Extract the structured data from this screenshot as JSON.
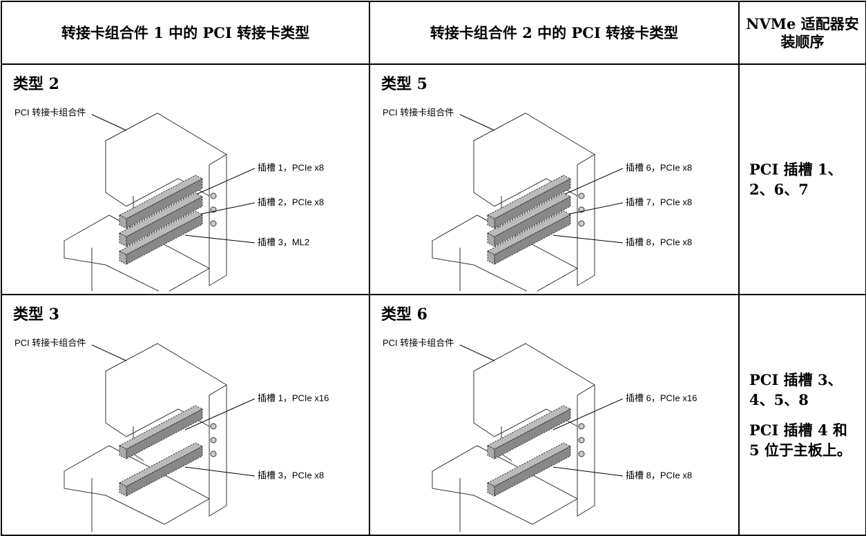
{
  "table": {
    "header": [
      "转接卡组合件 1 中的 PCI 转接卡类型",
      "转接卡组合件 2 中的 PCI 转接卡类型",
      "NVMe 适配器安装顺序"
    ],
    "rows": [
      {
        "cells": [
          {
            "title": "类型 2",
            "assembly_label": "PCI 转接卡组合件",
            "slots": [
              "插槽 1，PCIe x8",
              "插槽 2，PCIe x8",
              "插槽 3，ML2"
            ]
          },
          {
            "title": "类型 5",
            "assembly_label": "PCI 转接卡组合件",
            "slots": [
              "插槽 6，PCIe x8",
              "插槽 7，PCIe x8",
              "插槽 8，PCIe x8"
            ]
          }
        ],
        "order": [
          "PCI 插槽 1、2、6、7"
        ]
      },
      {
        "cells": [
          {
            "title": "类型 3",
            "assembly_label": "PCI 转接卡组合件",
            "slots": [
              "插槽 1，PCIe x16",
              "插槽 3，PCIe x8"
            ]
          },
          {
            "title": "类型 6",
            "assembly_label": "PCI 转接卡组合件",
            "slots": [
              "插槽 6，PCIe x16",
              "插槽 8，PCIe x8"
            ]
          }
        ],
        "order": [
          "PCI 插槽 3、4、5、8",
          "PCI 插槽 4 和 5 位于主板上。"
        ]
      }
    ]
  }
}
